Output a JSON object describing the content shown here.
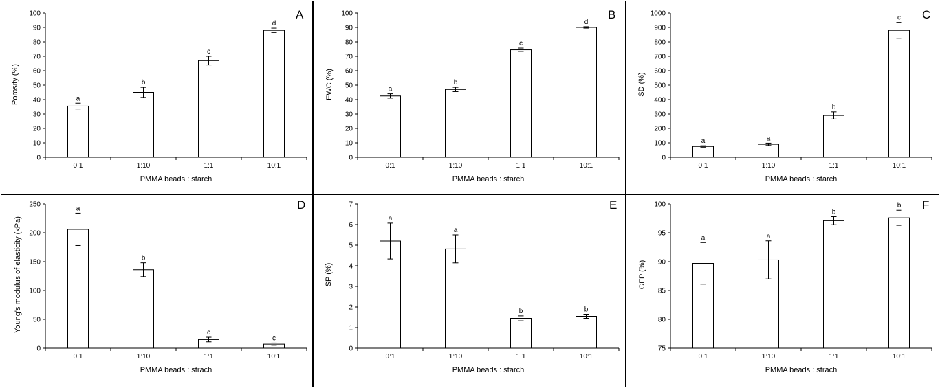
{
  "chart_data": [
    {
      "type": "bar",
      "panel": "A",
      "categories": [
        "0:1",
        "1:10",
        "1:1",
        "10:1"
      ],
      "values": [
        35.5,
        45,
        67,
        88
      ],
      "errors": [
        2,
        3.5,
        3,
        1.5
      ],
      "letters": [
        "a",
        "b",
        "c",
        "d"
      ],
      "xlabel": "PMMA beads : starch",
      "ylabel": "Porosity (%)",
      "ylim": [
        0,
        100
      ],
      "yticks": [
        0,
        10,
        20,
        30,
        40,
        50,
        60,
        70,
        80,
        90,
        100
      ]
    },
    {
      "type": "bar",
      "panel": "B",
      "categories": [
        "0:1",
        "1:10",
        "1:1",
        "10:1"
      ],
      "values": [
        42.5,
        47,
        74.5,
        90
      ],
      "errors": [
        1.5,
        1.5,
        1.2,
        0.5
      ],
      "letters": [
        "a",
        "b",
        "c",
        "d"
      ],
      "xlabel": "PMMA beads : starch",
      "ylabel": "EWC (%)",
      "ylim": [
        0,
        100
      ],
      "yticks": [
        0,
        10,
        20,
        30,
        40,
        50,
        60,
        70,
        80,
        90,
        100
      ]
    },
    {
      "type": "bar",
      "panel": "C",
      "categories": [
        "0:1",
        "1:10",
        "1:1",
        "10:1"
      ],
      "values": [
        75,
        90,
        290,
        880
      ],
      "errors": [
        5,
        8,
        25,
        55
      ],
      "letters": [
        "a",
        "a",
        "b",
        "c"
      ],
      "xlabel": "PMMA beads : starch",
      "ylabel": "SD (%)",
      "ylim": [
        0,
        1000
      ],
      "yticks": [
        0,
        100,
        200,
        300,
        400,
        500,
        600,
        700,
        800,
        900,
        1000
      ]
    },
    {
      "type": "bar",
      "panel": "D",
      "categories": [
        "0:1",
        "1:10",
        "1:1",
        "10:1"
      ],
      "values": [
        206,
        136,
        15,
        7
      ],
      "errors": [
        28,
        12,
        4,
        2
      ],
      "letters": [
        "a",
        "b",
        "c",
        "c"
      ],
      "xlabel": "PMMA beads : strach",
      "ylabel": "Young's modulus of elasticity (kPa)",
      "ylim": [
        0,
        250
      ],
      "yticks": [
        0,
        50,
        100,
        150,
        200,
        250
      ]
    },
    {
      "type": "bar",
      "panel": "E",
      "categories": [
        "0:1",
        "1:10",
        "1:1",
        "10:1"
      ],
      "values": [
        5.2,
        4.82,
        1.45,
        1.55
      ],
      "errors": [
        0.87,
        0.68,
        0.12,
        0.1
      ],
      "letters": [
        "a",
        "a",
        "b",
        "b"
      ],
      "xlabel": "PMMA beads : starch",
      "ylabel": "SP (%)",
      "ylim": [
        0,
        7
      ],
      "yticks": [
        0,
        1,
        2,
        3,
        4,
        5,
        6,
        7
      ]
    },
    {
      "type": "bar",
      "panel": "F",
      "categories": [
        "0:1",
        "1:10",
        "1:1",
        "10:1"
      ],
      "values": [
        89.7,
        90.3,
        97.1,
        97.6
      ],
      "errors": [
        3.6,
        3.3,
        0.7,
        1.3
      ],
      "letters": [
        "a",
        "a",
        "b",
        "b"
      ],
      "xlabel": "PMMA beads : strach",
      "ylabel": "GFP (%)",
      "ylim": [
        75,
        100
      ],
      "yticks": [
        75,
        80,
        85,
        90,
        95,
        100
      ]
    }
  ]
}
